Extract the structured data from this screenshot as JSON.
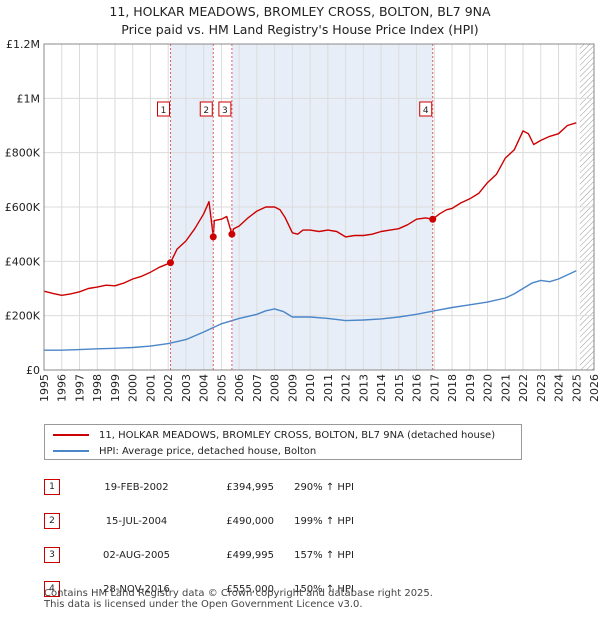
{
  "title_line1": "11, HOLKAR MEADOWS, BROMLEY CROSS, BOLTON, BL7 9NA",
  "title_line2": "Price paid vs. HM Land Registry's House Price Index (HPI)",
  "colors": {
    "property": "#cc0000",
    "hpi": "#4a86c8",
    "grid": "#dcdcdc",
    "marker_line": "#e06060",
    "shade": "#e8eef7",
    "hatch": "#999999"
  },
  "chart_data": {
    "type": "line",
    "title": "Price paid vs. HM Land Registry's House Price Index (HPI)",
    "xlim": [
      1995,
      2026
    ],
    "ylim": [
      0,
      1200000
    ],
    "y_ticks": [
      {
        "value": 0,
        "label": "£0"
      },
      {
        "value": 200000,
        "label": "£200K"
      },
      {
        "value": 400000,
        "label": "£400K"
      },
      {
        "value": 600000,
        "label": "£600K"
      },
      {
        "value": 800000,
        "label": "£800K"
      },
      {
        "value": 1000000,
        "label": "£1M"
      },
      {
        "value": 1200000,
        "label": "£1.2M"
      }
    ],
    "x_ticks": [
      "1995",
      "1996",
      "1997",
      "1998",
      "1999",
      "2000",
      "2001",
      "2002",
      "2003",
      "2004",
      "2005",
      "2006",
      "2007",
      "2008",
      "2009",
      "2010",
      "2011",
      "2012",
      "2013",
      "2014",
      "2015",
      "2016",
      "2017",
      "2018",
      "2019",
      "2020",
      "2021",
      "2022",
      "2023",
      "2024",
      "2025",
      "2026"
    ],
    "data_end": 2025.2,
    "series": [
      {
        "name": "11, HOLKAR MEADOWS, BROMLEY CROSS, BOLTON, BL7 9NA (detached house)",
        "color": "#cc0000",
        "x": [
          1995,
          1995.5,
          1996,
          1996.5,
          1997,
          1997.5,
          1998,
          1998.5,
          1999,
          1999.5,
          2000,
          2000.5,
          2001,
          2001.5,
          2002.13,
          2002.5,
          2003,
          2003.5,
          2004,
          2004.3,
          2004.54,
          2004.6,
          2005,
          2005.3,
          2005.59,
          2005.7,
          2006,
          2006.5,
          2007,
          2007.5,
          2008,
          2008.3,
          2008.6,
          2009,
          2009.3,
          2009.6,
          2010,
          2010.5,
          2011,
          2011.5,
          2012,
          2012.5,
          2013,
          2013.5,
          2014,
          2014.5,
          2015,
          2015.5,
          2016,
          2016.5,
          2016.91,
          2017.3,
          2017.7,
          2018,
          2018.5,
          2019,
          2019.5,
          2020,
          2020.5,
          2021,
          2021.5,
          2022,
          2022.3,
          2022.6,
          2023,
          2023.5,
          2024,
          2024.5,
          2025
        ],
        "y": [
          290000,
          282000,
          275000,
          280000,
          288000,
          300000,
          305000,
          312000,
          310000,
          320000,
          335000,
          345000,
          360000,
          378000,
          394995,
          445000,
          475000,
          520000,
          575000,
          620000,
          490000,
          550000,
          555000,
          565000,
          499995,
          520000,
          530000,
          560000,
          585000,
          600000,
          600000,
          590000,
          560000,
          505000,
          500000,
          515000,
          515000,
          510000,
          515000,
          510000,
          490000,
          495000,
          495000,
          500000,
          510000,
          515000,
          520000,
          535000,
          555000,
          560000,
          555000,
          575000,
          590000,
          595000,
          615000,
          630000,
          650000,
          690000,
          720000,
          780000,
          810000,
          880000,
          870000,
          830000,
          845000,
          860000,
          870000,
          900000,
          910000
        ]
      },
      {
        "name": "HPI: Average price, detached house, Bolton",
        "color": "#4a86c8",
        "x": [
          1995,
          1996,
          1997,
          1998,
          1999,
          2000,
          2001,
          2002,
          2003,
          2004,
          2005,
          2006,
          2007,
          2007.5,
          2008,
          2008.5,
          2009,
          2009.5,
          2010,
          2011,
          2012,
          2013,
          2014,
          2015,
          2016,
          2017,
          2018,
          2019,
          2020,
          2021,
          2021.5,
          2022,
          2022.5,
          2023,
          2023.5,
          2024,
          2024.5,
          2025
        ],
        "y": [
          73000,
          73000,
          75000,
          78000,
          80000,
          83000,
          88000,
          97000,
          112000,
          140000,
          170000,
          190000,
          205000,
          218000,
          225000,
          215000,
          195000,
          195000,
          195000,
          190000,
          182000,
          184000,
          188000,
          195000,
          205000,
          218000,
          230000,
          240000,
          250000,
          265000,
          280000,
          300000,
          320000,
          330000,
          325000,
          335000,
          350000,
          365000
        ]
      }
    ],
    "sales": [
      {
        "label": "1",
        "x": 2002.13,
        "price": 394995
      },
      {
        "label": "2",
        "x": 2004.54,
        "price": 490000
      },
      {
        "label": "3",
        "x": 2005.59,
        "price": 499995
      },
      {
        "label": "4",
        "x": 2016.91,
        "price": 555000
      }
    ]
  },
  "legend": {
    "property": "11, HOLKAR MEADOWS, BROMLEY CROSS, BOLTON, BL7 9NA (detached house)",
    "hpi": "HPI: Average price, detached house, Bolton"
  },
  "sales_table": [
    {
      "num": "1",
      "date": "19-FEB-2002",
      "price": "£394,995",
      "hpi": "290% ↑ HPI"
    },
    {
      "num": "2",
      "date": "15-JUL-2004",
      "price": "£490,000",
      "hpi": "199% ↑ HPI"
    },
    {
      "num": "3",
      "date": "02-AUG-2005",
      "price": "£499,995",
      "hpi": "157% ↑ HPI"
    },
    {
      "num": "4",
      "date": "28-NOV-2016",
      "price": "£555,000",
      "hpi": "150% ↑ HPI"
    }
  ],
  "footer_line1": "Contains HM Land Registry data © Crown copyright and database right 2025.",
  "footer_line2": "This data is licensed under the Open Government Licence v3.0."
}
